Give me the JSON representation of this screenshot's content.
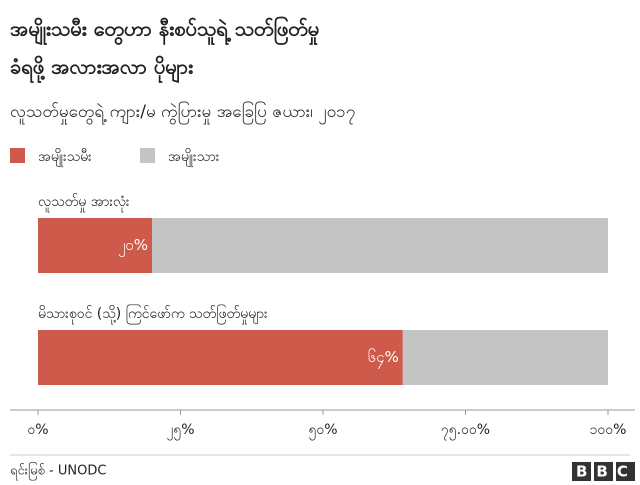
{
  "chart_data": {
    "type": "stacked-bar-horizontal",
    "title": [
      "အမျိုးသမီး တွေဟာ နီးစပ်သူရဲ့ သတ်ဖြတ်မှု",
      "ခံရဖို့ အလားအလာ ပိုများ"
    ],
    "subtitle": "လူသတ်မှုတွေရဲ့ ကျား/မ ကွဲပြားမှု အခြေပြ ဇယား၊ ၂၀၁၇",
    "categories": [
      "လူသတ်မှု အားလုံး",
      "မိသားစုဝင် (သို့) ကြင်ဖော်က သတ်ဖြတ်မှုများ"
    ],
    "series": [
      {
        "name": "အမျိုးသမီး",
        "color": "#ce5a4c",
        "values": [
          20,
          64
        ],
        "value_labels": [
          "၂၀%",
          "၆၄%"
        ]
      },
      {
        "name": "အမျိုးသား",
        "color": "#c4c4c4",
        "values": [
          80,
          36
        ]
      }
    ],
    "xlim": [
      0,
      100
    ],
    "xticks": [
      {
        "value": 0,
        "label": "၀%"
      },
      {
        "value": 25,
        "label": "၂၅%"
      },
      {
        "value": 50,
        "label": "၅၀%"
      },
      {
        "value": 75,
        "label": "၇၅.၀၀%"
      },
      {
        "value": 100,
        "label": "၁၀၀%"
      }
    ],
    "legend": "top-left",
    "source": "ရင်းမြစ် - UNODC",
    "logo": "BBC"
  }
}
